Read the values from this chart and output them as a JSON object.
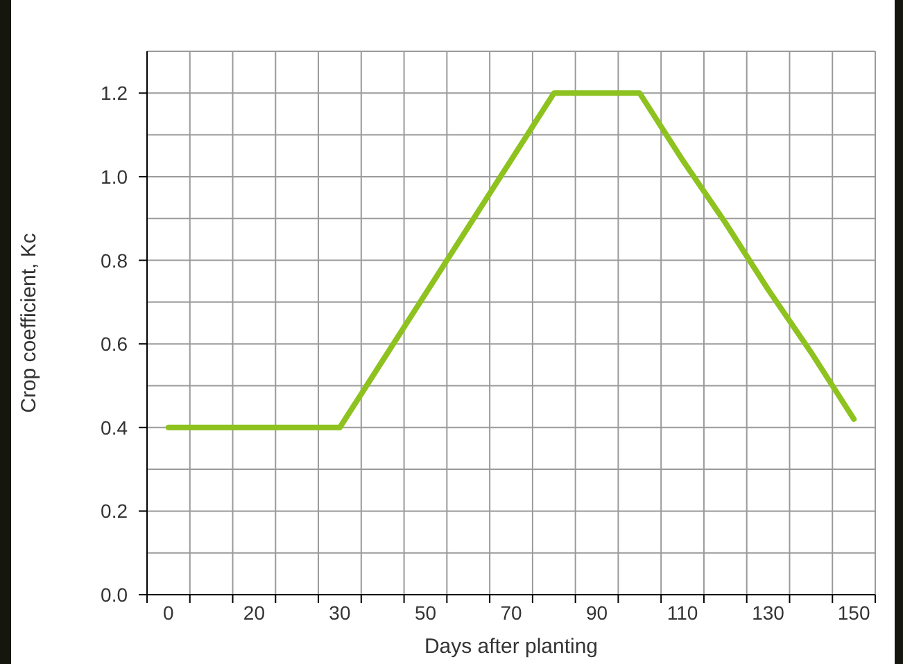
{
  "chart_data": {
    "type": "line",
    "xlabel": "Days after planting",
    "ylabel": "Crop coefficient, Kc",
    "categories": [
      "0",
      null,
      "20",
      null,
      "30",
      null,
      "50",
      null,
      "70",
      null,
      "90",
      null,
      "110",
      null,
      "130",
      null,
      "150"
    ],
    "series": [
      {
        "color": "#8dc21f",
        "values": [
          0.4,
          0.4,
          0.4,
          0.4,
          0.4,
          0.56,
          0.72,
          0.88,
          1.04,
          1.2,
          1.2,
          1.2,
          1.04,
          0.89,
          0.73,
          0.58,
          0.42
        ]
      }
    ],
    "ylim": [
      0,
      1.3
    ],
    "yticks": [
      {
        "value": 0,
        "label": "0.0"
      },
      {
        "value": 0.1,
        "label": null
      },
      0.2,
      {
        "value": 0.3,
        "label": null
      },
      0.4,
      {
        "value": 0.5,
        "label": null
      },
      0.6,
      {
        "value": 0.7,
        "label": null
      },
      0.8,
      {
        "value": 0.9,
        "label": null
      },
      {
        "value": 1,
        "label": "1.0"
      },
      {
        "value": 1.1,
        "label": null
      },
      1.2,
      {
        "value": 1.3,
        "label": null
      }
    ],
    "grid": true,
    "legend": false,
    "marker": "none",
    "line_style": "solid"
  }
}
